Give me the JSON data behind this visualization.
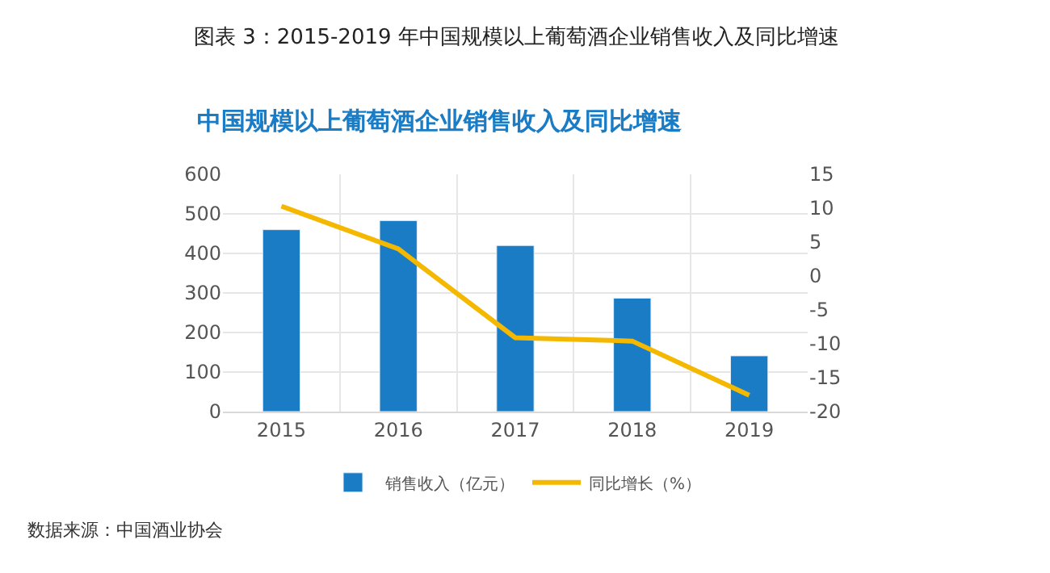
{
  "chart_data": {
    "type": "bar",
    "title": "图表 3：2015-2019 年中国规模以上葡萄酒企业销售收入及同比增速",
    "subtitle": "中国规模以上葡萄酒企业销售收入及同比增速",
    "categories": [
      "2015",
      "2016",
      "2017",
      "2018",
      "2019"
    ],
    "series": [
      {
        "name": "销售收入（亿元）",
        "color": "#1a7cc4",
        "values": [
          460,
          483,
          420,
          287,
          141
        ]
      },
      {
        "name": "同比增长（%）",
        "type": "line",
        "axis": "y2",
        "color": "#f5b800",
        "values": [
          10.3,
          4.0,
          -9.1,
          -9.6,
          -17.6
        ]
      }
    ],
    "ylim": [
      0,
      600
    ],
    "yticks": [
      0,
      100,
      200,
      300,
      400,
      500,
      600
    ],
    "y2lim": [
      -20,
      15
    ],
    "y2ticks": [
      -20,
      -15,
      -10,
      -5,
      0,
      5,
      10,
      15
    ],
    "grid": true,
    "legend": "bottom",
    "marker": "none",
    "annotations": [
      "数据来源：中国酒业协会"
    ]
  }
}
